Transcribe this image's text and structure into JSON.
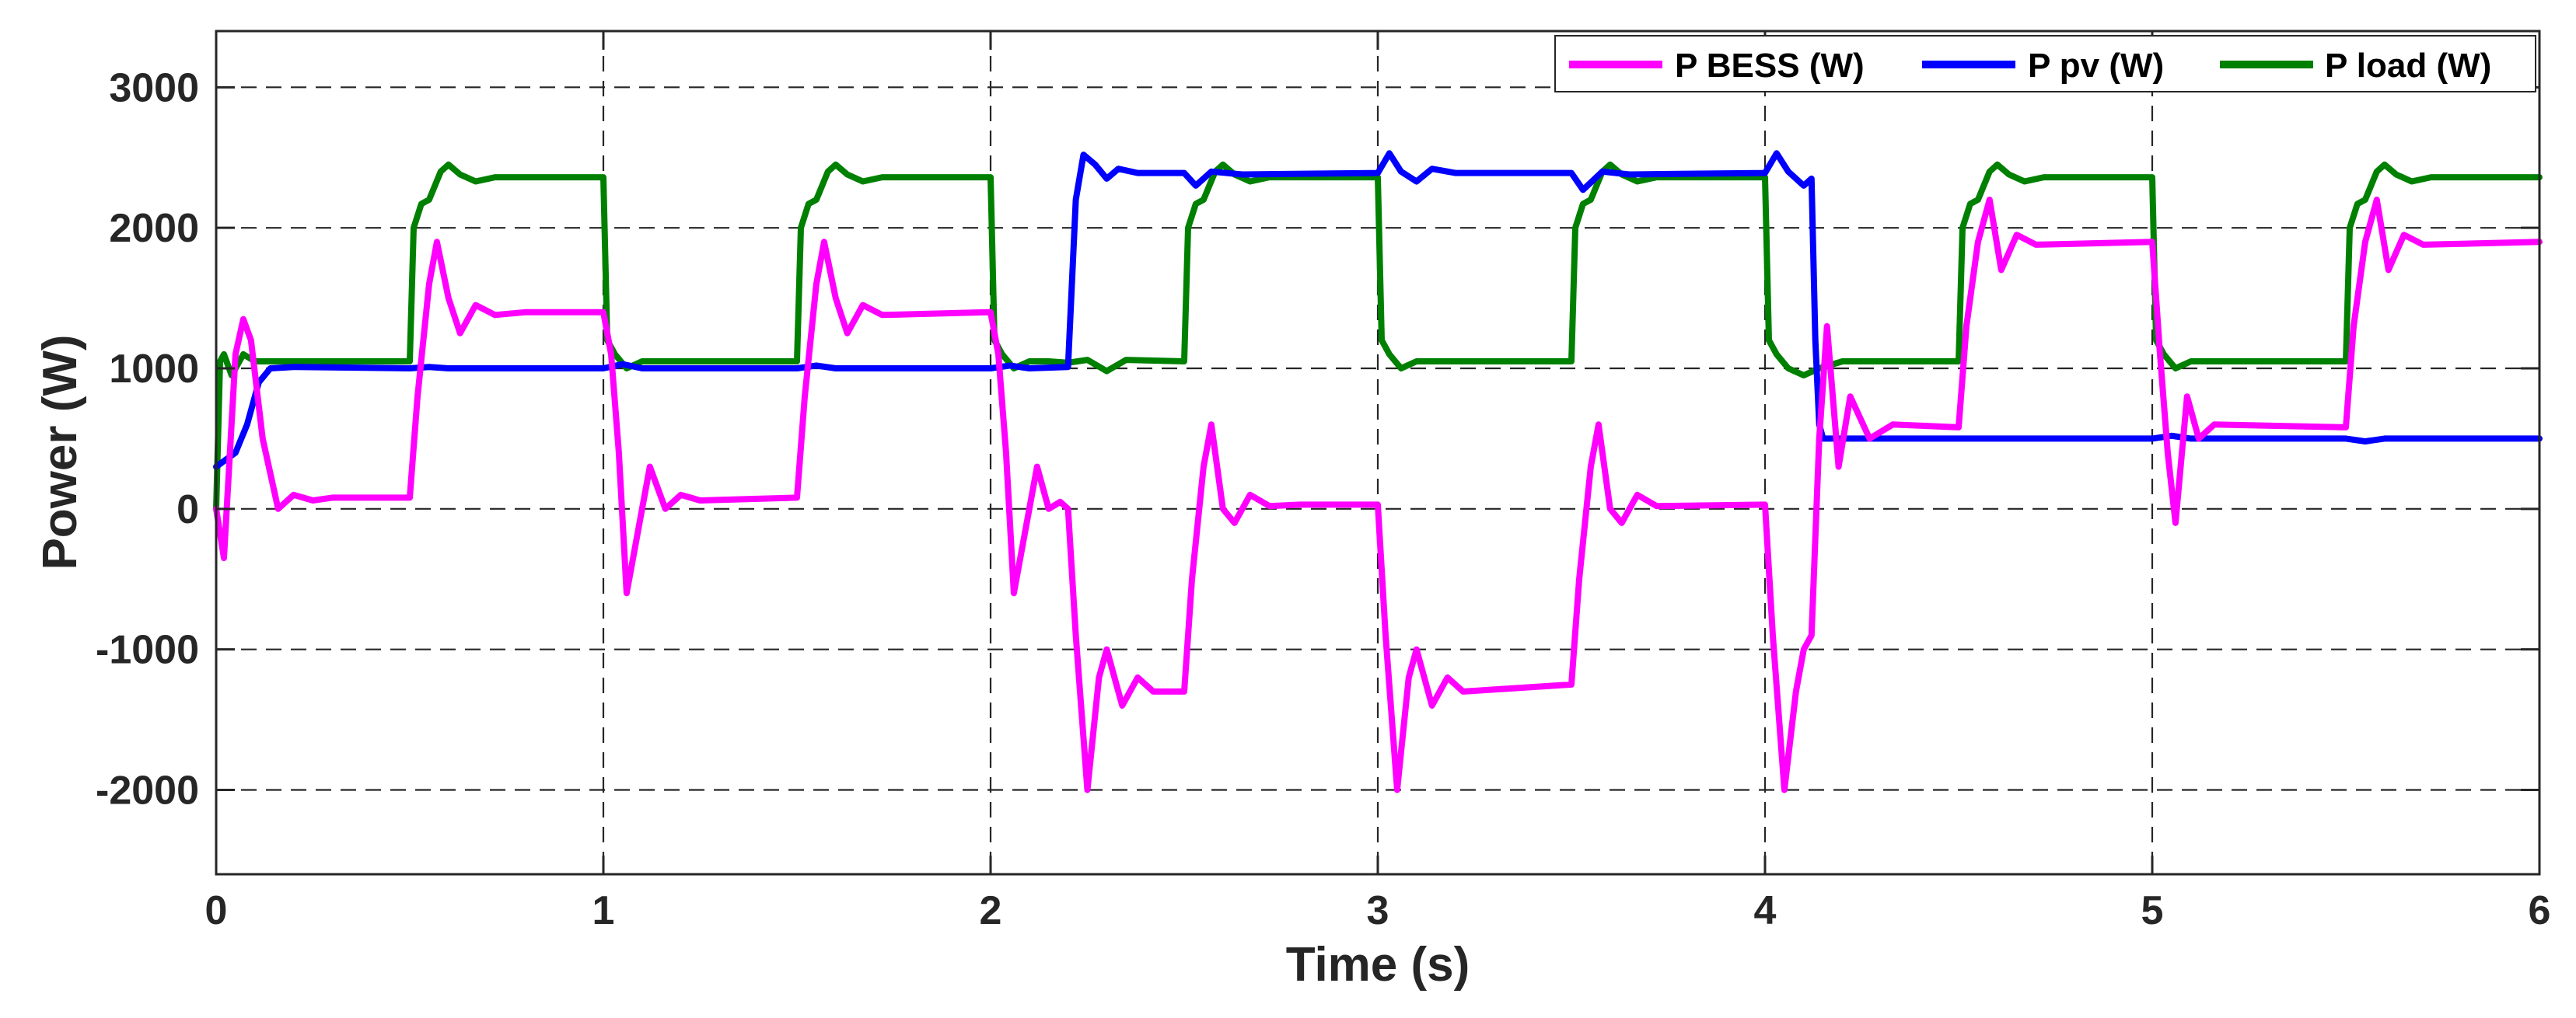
{
  "chart_data": {
    "type": "line",
    "title": "",
    "xlabel": "Time (s)",
    "ylabel": "Power (W)",
    "xlim": [
      0,
      6
    ],
    "ylim": [
      -2600,
      3000
    ],
    "xticks": [
      0,
      1,
      2,
      3,
      4,
      5,
      6
    ],
    "yticks": [
      -2000,
      -1000,
      0,
      1000,
      2000,
      3000
    ],
    "xtick_labels": [
      "0",
      "1",
      "2",
      "3",
      "4",
      "5",
      "6"
    ],
    "ytick_labels": [
      "-2000",
      "-1000",
      "0",
      "1000",
      "2000",
      "3000"
    ],
    "grid": true,
    "legend_position": "top-right",
    "series": [
      {
        "name": "P BESS (W)",
        "color": "#ff00ff",
        "points": [
          [
            0,
            0
          ],
          [
            0.02,
            -350
          ],
          [
            0.05,
            1100
          ],
          [
            0.07,
            1350
          ],
          [
            0.09,
            1200
          ],
          [
            0.12,
            500
          ],
          [
            0.16,
            0
          ],
          [
            0.2,
            100
          ],
          [
            0.25,
            60
          ],
          [
            0.3,
            80
          ],
          [
            0.5,
            80
          ],
          [
            0.52,
            800
          ],
          [
            0.55,
            1600
          ],
          [
            0.57,
            1900
          ],
          [
            0.6,
            1500
          ],
          [
            0.63,
            1250
          ],
          [
            0.67,
            1450
          ],
          [
            0.72,
            1380
          ],
          [
            0.8,
            1400
          ],
          [
            1.0,
            1400
          ],
          [
            1.02,
            1100
          ],
          [
            1.04,
            400
          ],
          [
            1.06,
            -600
          ],
          [
            1.1,
            0
          ],
          [
            1.12,
            300
          ],
          [
            1.16,
            0
          ],
          [
            1.2,
            100
          ],
          [
            1.25,
            60
          ],
          [
            1.5,
            80
          ],
          [
            1.52,
            800
          ],
          [
            1.55,
            1600
          ],
          [
            1.57,
            1900
          ],
          [
            1.6,
            1500
          ],
          [
            1.63,
            1250
          ],
          [
            1.67,
            1450
          ],
          [
            1.72,
            1380
          ],
          [
            2.0,
            1400
          ],
          [
            2.02,
            1100
          ],
          [
            2.04,
            400
          ],
          [
            2.06,
            -600
          ],
          [
            2.1,
            0
          ],
          [
            2.12,
            300
          ],
          [
            2.15,
            0
          ],
          [
            2.18,
            50
          ],
          [
            2.2,
            0
          ],
          [
            2.22,
            -900
          ],
          [
            2.25,
            -2000
          ],
          [
            2.28,
            -1200
          ],
          [
            2.3,
            -1000
          ],
          [
            2.34,
            -1400
          ],
          [
            2.38,
            -1200
          ],
          [
            2.42,
            -1300
          ],
          [
            2.5,
            -1300
          ],
          [
            2.52,
            -500
          ],
          [
            2.55,
            300
          ],
          [
            2.57,
            600
          ],
          [
            2.6,
            0
          ],
          [
            2.63,
            -100
          ],
          [
            2.67,
            100
          ],
          [
            2.72,
            20
          ],
          [
            2.8,
            30
          ],
          [
            3.0,
            30
          ],
          [
            3.02,
            -900
          ],
          [
            3.05,
            -2000
          ],
          [
            3.08,
            -1200
          ],
          [
            3.1,
            -1000
          ],
          [
            3.14,
            -1400
          ],
          [
            3.18,
            -1200
          ],
          [
            3.22,
            -1300
          ],
          [
            3.5,
            -1250
          ],
          [
            3.52,
            -500
          ],
          [
            3.55,
            300
          ],
          [
            3.57,
            600
          ],
          [
            3.6,
            0
          ],
          [
            3.63,
            -100
          ],
          [
            3.67,
            100
          ],
          [
            3.72,
            20
          ],
          [
            4.0,
            30
          ],
          [
            4.02,
            -900
          ],
          [
            4.05,
            -2000
          ],
          [
            4.08,
            -1300
          ],
          [
            4.1,
            -1000
          ],
          [
            4.12,
            -900
          ],
          [
            4.14,
            500
          ],
          [
            4.16,
            1300
          ],
          [
            4.19,
            300
          ],
          [
            4.22,
            800
          ],
          [
            4.27,
            500
          ],
          [
            4.33,
            600
          ],
          [
            4.5,
            580
          ],
          [
            4.52,
            1300
          ],
          [
            4.55,
            1900
          ],
          [
            4.58,
            2200
          ],
          [
            4.61,
            1700
          ],
          [
            4.65,
            1950
          ],
          [
            4.7,
            1880
          ],
          [
            5.0,
            1900
          ],
          [
            5.02,
            1100
          ],
          [
            5.04,
            400
          ],
          [
            5.06,
            -100
          ],
          [
            5.09,
            800
          ],
          [
            5.12,
            500
          ],
          [
            5.16,
            600
          ],
          [
            5.5,
            580
          ],
          [
            5.52,
            1300
          ],
          [
            5.55,
            1900
          ],
          [
            5.58,
            2200
          ],
          [
            5.61,
            1700
          ],
          [
            5.65,
            1950
          ],
          [
            5.7,
            1880
          ],
          [
            6.0,
            1900
          ]
        ]
      },
      {
        "name": "P pv (W)",
        "color": "#0000ff",
        "points": [
          [
            0,
            300
          ],
          [
            0.05,
            400
          ],
          [
            0.08,
            600
          ],
          [
            0.11,
            900
          ],
          [
            0.14,
            1000
          ],
          [
            0.2,
            1010
          ],
          [
            0.5,
            1000
          ],
          [
            0.55,
            1010
          ],
          [
            0.6,
            1000
          ],
          [
            1.0,
            1000
          ],
          [
            1.05,
            1030
          ],
          [
            1.1,
            1000
          ],
          [
            1.5,
            1000
          ],
          [
            1.55,
            1020
          ],
          [
            1.6,
            1000
          ],
          [
            2.0,
            1000
          ],
          [
            2.05,
            1020
          ],
          [
            2.1,
            1000
          ],
          [
            2.2,
            1010
          ],
          [
            2.22,
            2200
          ],
          [
            2.24,
            2520
          ],
          [
            2.27,
            2450
          ],
          [
            2.3,
            2350
          ],
          [
            2.33,
            2420
          ],
          [
            2.38,
            2390
          ],
          [
            2.5,
            2390
          ],
          [
            2.53,
            2300
          ],
          [
            2.57,
            2400
          ],
          [
            2.65,
            2380
          ],
          [
            3.0,
            2390
          ],
          [
            3.03,
            2530
          ],
          [
            3.06,
            2400
          ],
          [
            3.1,
            2330
          ],
          [
            3.14,
            2420
          ],
          [
            3.2,
            2390
          ],
          [
            3.5,
            2390
          ],
          [
            3.53,
            2270
          ],
          [
            3.58,
            2400
          ],
          [
            3.65,
            2380
          ],
          [
            4.0,
            2390
          ],
          [
            4.03,
            2530
          ],
          [
            4.06,
            2400
          ],
          [
            4.1,
            2300
          ],
          [
            4.12,
            2350
          ],
          [
            4.13,
            1200
          ],
          [
            4.14,
            600
          ],
          [
            4.15,
            500
          ],
          [
            4.2,
            500
          ],
          [
            4.5,
            500
          ],
          [
            5.0,
            500
          ],
          [
            5.05,
            520
          ],
          [
            5.1,
            500
          ],
          [
            5.5,
            500
          ],
          [
            5.55,
            480
          ],
          [
            5.6,
            500
          ],
          [
            6.0,
            500
          ]
        ]
      },
      {
        "name": "P load (W)",
        "color": "#008000",
        "points": [
          [
            0,
            0
          ],
          [
            0.01,
            1050
          ],
          [
            0.02,
            1100
          ],
          [
            0.04,
            950
          ],
          [
            0.07,
            1100
          ],
          [
            0.1,
            1050
          ],
          [
            0.2,
            1050
          ],
          [
            0.5,
            1050
          ],
          [
            0.51,
            2000
          ],
          [
            0.53,
            2170
          ],
          [
            0.55,
            2200
          ],
          [
            0.58,
            2400
          ],
          [
            0.6,
            2450
          ],
          [
            0.63,
            2380
          ],
          [
            0.67,
            2330
          ],
          [
            0.72,
            2360
          ],
          [
            1.0,
            2360
          ],
          [
            1.01,
            1200
          ],
          [
            1.03,
            1100
          ],
          [
            1.06,
            1000
          ],
          [
            1.1,
            1050
          ],
          [
            1.15,
            1050
          ],
          [
            1.5,
            1050
          ],
          [
            1.51,
            2000
          ],
          [
            1.53,
            2170
          ],
          [
            1.55,
            2200
          ],
          [
            1.58,
            2400
          ],
          [
            1.6,
            2450
          ],
          [
            1.63,
            2380
          ],
          [
            1.67,
            2330
          ],
          [
            1.72,
            2360
          ],
          [
            2.0,
            2360
          ],
          [
            2.01,
            1200
          ],
          [
            2.03,
            1100
          ],
          [
            2.06,
            1000
          ],
          [
            2.1,
            1050
          ],
          [
            2.15,
            1050
          ],
          [
            2.2,
            1040
          ],
          [
            2.25,
            1060
          ],
          [
            2.3,
            980
          ],
          [
            2.35,
            1060
          ],
          [
            2.5,
            1050
          ],
          [
            2.51,
            2000
          ],
          [
            2.53,
            2170
          ],
          [
            2.55,
            2200
          ],
          [
            2.58,
            2400
          ],
          [
            2.6,
            2450
          ],
          [
            2.63,
            2380
          ],
          [
            2.67,
            2330
          ],
          [
            2.72,
            2360
          ],
          [
            3.0,
            2360
          ],
          [
            3.01,
            1200
          ],
          [
            3.03,
            1100
          ],
          [
            3.06,
            1000
          ],
          [
            3.1,
            1050
          ],
          [
            3.15,
            1050
          ],
          [
            3.5,
            1050
          ],
          [
            3.51,
            2000
          ],
          [
            3.53,
            2170
          ],
          [
            3.55,
            2200
          ],
          [
            3.58,
            2400
          ],
          [
            3.6,
            2450
          ],
          [
            3.63,
            2380
          ],
          [
            3.67,
            2330
          ],
          [
            3.72,
            2360
          ],
          [
            4.0,
            2360
          ],
          [
            4.01,
            1200
          ],
          [
            4.03,
            1100
          ],
          [
            4.06,
            1000
          ],
          [
            4.1,
            950
          ],
          [
            4.14,
            1000
          ],
          [
            4.2,
            1050
          ],
          [
            4.5,
            1050
          ],
          [
            4.51,
            2000
          ],
          [
            4.53,
            2170
          ],
          [
            4.55,
            2200
          ],
          [
            4.58,
            2400
          ],
          [
            4.6,
            2450
          ],
          [
            4.63,
            2380
          ],
          [
            4.67,
            2330
          ],
          [
            4.72,
            2360
          ],
          [
            5.0,
            2360
          ],
          [
            5.01,
            1200
          ],
          [
            5.03,
            1100
          ],
          [
            5.06,
            1000
          ],
          [
            5.1,
            1050
          ],
          [
            5.15,
            1050
          ],
          [
            5.5,
            1050
          ],
          [
            5.51,
            2000
          ],
          [
            5.53,
            2170
          ],
          [
            5.55,
            2200
          ],
          [
            5.58,
            2400
          ],
          [
            5.6,
            2450
          ],
          [
            5.63,
            2380
          ],
          [
            5.67,
            2330
          ],
          [
            5.72,
            2360
          ],
          [
            6.0,
            2360
          ]
        ]
      }
    ]
  }
}
